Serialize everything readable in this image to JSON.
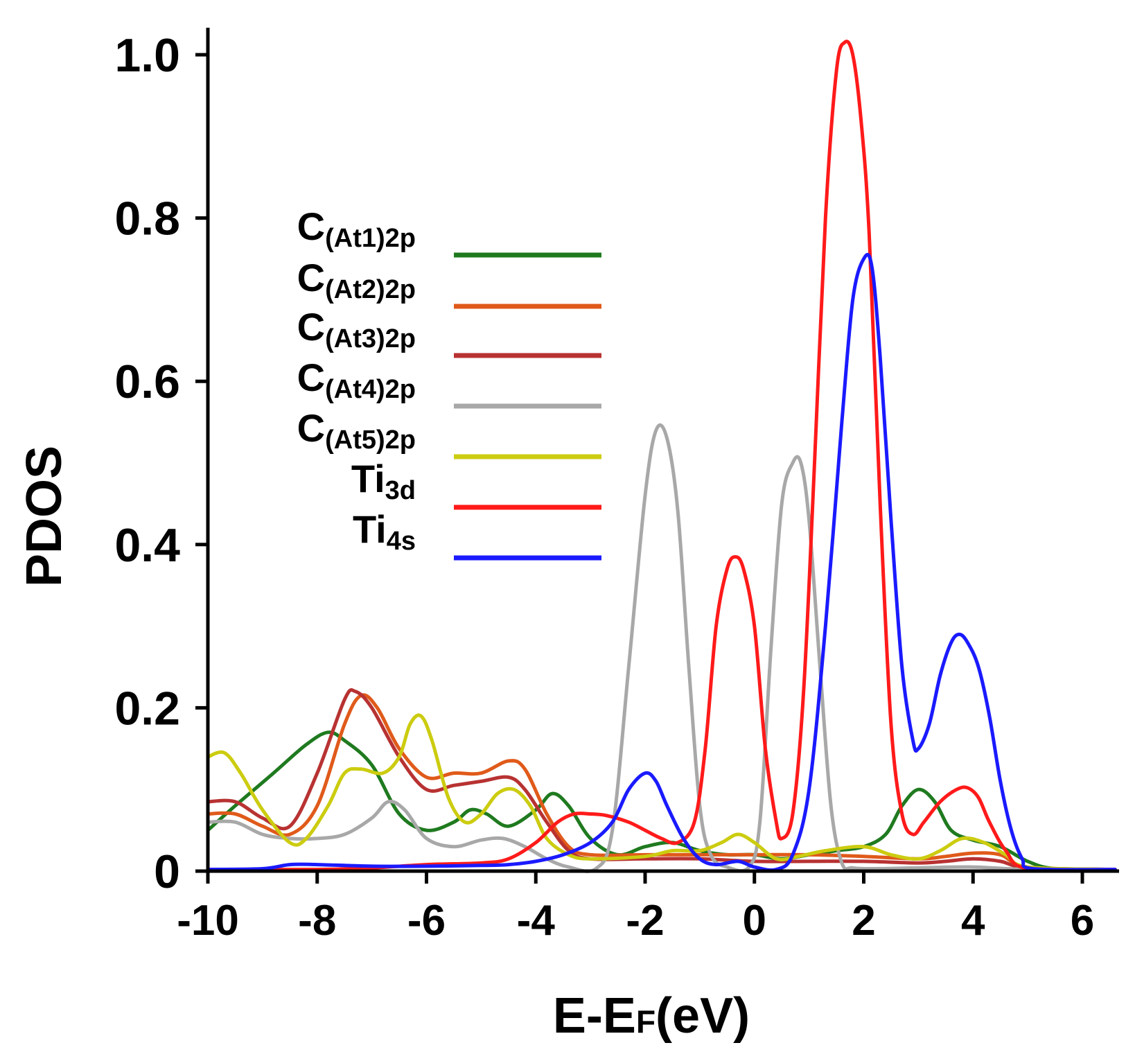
{
  "chart_data": {
    "type": "line",
    "title": "",
    "xlabel_main": "E-E",
    "xlabel_sub": "F",
    "xlabel_unit": "(eV)",
    "ylabel": "PDOS",
    "xlim": [
      -10,
      6.6
    ],
    "ylim": [
      0,
      1.0
    ],
    "xticks": [
      -10,
      -8,
      -6,
      -4,
      -2,
      0,
      2,
      4,
      6
    ],
    "xtick_labels": [
      "-10",
      "-8",
      "-6",
      "-4",
      "-2",
      "0",
      "2",
      "4",
      "6"
    ],
    "yticks": [
      0,
      0.2,
      0.4,
      0.6,
      0.8,
      1.0
    ],
    "ytick_labels": [
      "0",
      "0.2",
      "0.4",
      "0.6",
      "0.8",
      "1.0"
    ],
    "grid": false,
    "legend_position": "top-left",
    "series": [
      {
        "name": "C(At1)2p",
        "legend_main": "C",
        "legend_sub": "(At1)2p",
        "color": "#1f7a1f",
        "points": [
          [
            -10,
            0.05
          ],
          [
            -9.5,
            0.08
          ],
          [
            -8.8,
            0.12
          ],
          [
            -8.2,
            0.155
          ],
          [
            -7.8,
            0.17
          ],
          [
            -7.5,
            0.16
          ],
          [
            -7.0,
            0.13
          ],
          [
            -6.5,
            0.07
          ],
          [
            -6.0,
            0.05
          ],
          [
            -5.5,
            0.06
          ],
          [
            -5.2,
            0.075
          ],
          [
            -4.9,
            0.07
          ],
          [
            -4.5,
            0.055
          ],
          [
            -4.0,
            0.075
          ],
          [
            -3.7,
            0.095
          ],
          [
            -3.4,
            0.08
          ],
          [
            -3.0,
            0.04
          ],
          [
            -2.5,
            0.02
          ],
          [
            -2.0,
            0.03
          ],
          [
            -1.5,
            0.035
          ],
          [
            -1.0,
            0.025
          ],
          [
            -0.5,
            0.02
          ],
          [
            0,
            0.02
          ],
          [
            0.5,
            0.015
          ],
          [
            1.0,
            0.02
          ],
          [
            1.5,
            0.025
          ],
          [
            2.0,
            0.03
          ],
          [
            2.4,
            0.045
          ],
          [
            2.7,
            0.08
          ],
          [
            3.0,
            0.1
          ],
          [
            3.3,
            0.085
          ],
          [
            3.6,
            0.05
          ],
          [
            4.0,
            0.038
          ],
          [
            4.5,
            0.03
          ],
          [
            5.0,
            0.012
          ],
          [
            5.5,
            0.003
          ],
          [
            6.6,
            0.002
          ]
        ]
      },
      {
        "name": "C(At2)2p",
        "legend_main": "C",
        "legend_sub": "(At2)2p",
        "color": "#e05a1a",
        "points": [
          [
            -10,
            0.07
          ],
          [
            -9.5,
            0.07
          ],
          [
            -9.0,
            0.055
          ],
          [
            -8.5,
            0.045
          ],
          [
            -8.0,
            0.08
          ],
          [
            -7.5,
            0.18
          ],
          [
            -7.2,
            0.215
          ],
          [
            -6.9,
            0.2
          ],
          [
            -6.5,
            0.15
          ],
          [
            -6.0,
            0.115
          ],
          [
            -5.5,
            0.12
          ],
          [
            -5.0,
            0.12
          ],
          [
            -4.5,
            0.135
          ],
          [
            -4.2,
            0.125
          ],
          [
            -3.8,
            0.07
          ],
          [
            -3.4,
            0.03
          ],
          [
            -3.0,
            0.02
          ],
          [
            -2.0,
            0.02
          ],
          [
            -1.0,
            0.02
          ],
          [
            0,
            0.02
          ],
          [
            1.0,
            0.02
          ],
          [
            2.0,
            0.018
          ],
          [
            3.0,
            0.015
          ],
          [
            3.5,
            0.018
          ],
          [
            4.0,
            0.022
          ],
          [
            4.5,
            0.02
          ],
          [
            5.0,
            0.005
          ],
          [
            6.6,
            0.002
          ]
        ]
      },
      {
        "name": "C(At3)2p",
        "legend_main": "C",
        "legend_sub": "(At3)2p",
        "color": "#b83232",
        "points": [
          [
            -10,
            0.085
          ],
          [
            -9.5,
            0.085
          ],
          [
            -9.0,
            0.065
          ],
          [
            -8.5,
            0.055
          ],
          [
            -8.0,
            0.12
          ],
          [
            -7.5,
            0.21
          ],
          [
            -7.3,
            0.22
          ],
          [
            -7.0,
            0.2
          ],
          [
            -6.5,
            0.14
          ],
          [
            -6.0,
            0.1
          ],
          [
            -5.5,
            0.105
          ],
          [
            -5.0,
            0.11
          ],
          [
            -4.5,
            0.115
          ],
          [
            -4.2,
            0.1
          ],
          [
            -3.8,
            0.06
          ],
          [
            -3.4,
            0.025
          ],
          [
            -3.0,
            0.015
          ],
          [
            -2.0,
            0.015
          ],
          [
            -1.0,
            0.015
          ],
          [
            0,
            0.012
          ],
          [
            1.0,
            0.012
          ],
          [
            2.0,
            0.012
          ],
          [
            3.0,
            0.01
          ],
          [
            3.5,
            0.012
          ],
          [
            4.0,
            0.015
          ],
          [
            4.5,
            0.012
          ],
          [
            5.0,
            0.004
          ],
          [
            6.6,
            0.002
          ]
        ]
      },
      {
        "name": "C(At4)2p",
        "legend_main": "C",
        "legend_sub": "(At4)2p",
        "color": "#a8a8a8",
        "points": [
          [
            -10,
            0.06
          ],
          [
            -9.5,
            0.06
          ],
          [
            -9.0,
            0.045
          ],
          [
            -8.5,
            0.04
          ],
          [
            -8.0,
            0.04
          ],
          [
            -7.5,
            0.045
          ],
          [
            -7.0,
            0.065
          ],
          [
            -6.7,
            0.085
          ],
          [
            -6.4,
            0.075
          ],
          [
            -6.0,
            0.04
          ],
          [
            -5.5,
            0.03
          ],
          [
            -5.0,
            0.038
          ],
          [
            -4.6,
            0.04
          ],
          [
            -4.2,
            0.03
          ],
          [
            -3.8,
            0.015
          ],
          [
            -3.4,
            0.005
          ],
          [
            -2.9,
            0.003
          ],
          [
            -2.6,
            0.05
          ],
          [
            -2.3,
            0.25
          ],
          [
            -2.0,
            0.46
          ],
          [
            -1.8,
            0.54
          ],
          [
            -1.6,
            0.53
          ],
          [
            -1.4,
            0.44
          ],
          [
            -1.2,
            0.25
          ],
          [
            -1.0,
            0.08
          ],
          [
            -0.8,
            0.02
          ],
          [
            -0.5,
            0.005
          ],
          [
            -0.1,
            0.005
          ],
          [
            0.1,
            0.06
          ],
          [
            0.3,
            0.27
          ],
          [
            0.5,
            0.45
          ],
          [
            0.7,
            0.5
          ],
          [
            0.85,
            0.5
          ],
          [
            1.0,
            0.43
          ],
          [
            1.2,
            0.25
          ],
          [
            1.4,
            0.08
          ],
          [
            1.6,
            0.01
          ],
          [
            1.8,
            0.004
          ],
          [
            2.2,
            0.003
          ],
          [
            3.0,
            0.004
          ],
          [
            4.0,
            0.005
          ],
          [
            5.0,
            0.002
          ],
          [
            6.6,
            0.002
          ]
        ]
      },
      {
        "name": "C(At5)2p",
        "legend_main": "C",
        "legend_sub": "(At5)2p",
        "color": "#cccc10",
        "points": [
          [
            -10,
            0.14
          ],
          [
            -9.7,
            0.145
          ],
          [
            -9.4,
            0.12
          ],
          [
            -9.0,
            0.075
          ],
          [
            -8.5,
            0.035
          ],
          [
            -8.2,
            0.04
          ],
          [
            -7.8,
            0.08
          ],
          [
            -7.5,
            0.12
          ],
          [
            -7.2,
            0.125
          ],
          [
            -6.8,
            0.12
          ],
          [
            -6.5,
            0.14
          ],
          [
            -6.3,
            0.18
          ],
          [
            -6.1,
            0.19
          ],
          [
            -5.9,
            0.16
          ],
          [
            -5.6,
            0.09
          ],
          [
            -5.3,
            0.06
          ],
          [
            -5.0,
            0.07
          ],
          [
            -4.7,
            0.095
          ],
          [
            -4.4,
            0.1
          ],
          [
            -4.1,
            0.08
          ],
          [
            -3.8,
            0.04
          ],
          [
            -3.4,
            0.02
          ],
          [
            -3.0,
            0.015
          ],
          [
            -2.0,
            0.018
          ],
          [
            -1.5,
            0.025
          ],
          [
            -1.0,
            0.025
          ],
          [
            -0.6,
            0.035
          ],
          [
            -0.3,
            0.045
          ],
          [
            0,
            0.035
          ],
          [
            0.4,
            0.015
          ],
          [
            0.8,
            0.018
          ],
          [
            1.3,
            0.025
          ],
          [
            2.0,
            0.03
          ],
          [
            2.5,
            0.02
          ],
          [
            3.0,
            0.015
          ],
          [
            3.4,
            0.025
          ],
          [
            3.8,
            0.04
          ],
          [
            4.2,
            0.035
          ],
          [
            4.6,
            0.02
          ],
          [
            5.0,
            0.005
          ],
          [
            6.6,
            0.002
          ]
        ]
      },
      {
        "name": "Ti3d",
        "legend_main": "Ti",
        "legend_sub": "3d",
        "color": "#ff1a1a",
        "points": [
          [
            -10,
            0.002
          ],
          [
            -8,
            0.002
          ],
          [
            -7,
            0.004
          ],
          [
            -6,
            0.008
          ],
          [
            -5,
            0.01
          ],
          [
            -4.5,
            0.015
          ],
          [
            -4.0,
            0.035
          ],
          [
            -3.6,
            0.06
          ],
          [
            -3.3,
            0.07
          ],
          [
            -3.0,
            0.07
          ],
          [
            -2.7,
            0.068
          ],
          [
            -2.3,
            0.06
          ],
          [
            -2.0,
            0.05
          ],
          [
            -1.7,
            0.04
          ],
          [
            -1.4,
            0.035
          ],
          [
            -1.1,
            0.06
          ],
          [
            -0.9,
            0.15
          ],
          [
            -0.7,
            0.3
          ],
          [
            -0.5,
            0.37
          ],
          [
            -0.35,
            0.385
          ],
          [
            -0.2,
            0.37
          ],
          [
            0,
            0.3
          ],
          [
            0.2,
            0.15
          ],
          [
            0.4,
            0.06
          ],
          [
            0.5,
            0.04
          ],
          [
            0.7,
            0.07
          ],
          [
            0.9,
            0.22
          ],
          [
            1.1,
            0.5
          ],
          [
            1.3,
            0.8
          ],
          [
            1.5,
            0.98
          ],
          [
            1.65,
            1.015
          ],
          [
            1.8,
            1.0
          ],
          [
            1.95,
            0.92
          ],
          [
            2.1,
            0.78
          ],
          [
            2.3,
            0.45
          ],
          [
            2.5,
            0.18
          ],
          [
            2.7,
            0.07
          ],
          [
            2.9,
            0.045
          ],
          [
            3.1,
            0.06
          ],
          [
            3.4,
            0.085
          ],
          [
            3.7,
            0.1
          ],
          [
            3.9,
            0.102
          ],
          [
            4.1,
            0.09
          ],
          [
            4.3,
            0.06
          ],
          [
            4.6,
            0.025
          ],
          [
            5.0,
            0.003
          ],
          [
            6.6,
            0.002
          ]
        ]
      },
      {
        "name": "Ti4s",
        "legend_main": "Ti",
        "legend_sub": "4s",
        "color": "#1a1aff",
        "points": [
          [
            -10,
            0.002
          ],
          [
            -9,
            0.003
          ],
          [
            -8.5,
            0.008
          ],
          [
            -8,
            0.008
          ],
          [
            -7,
            0.006
          ],
          [
            -6,
            0.006
          ],
          [
            -5,
            0.007
          ],
          [
            -4.5,
            0.008
          ],
          [
            -4.0,
            0.012
          ],
          [
            -3.5,
            0.02
          ],
          [
            -3.0,
            0.035
          ],
          [
            -2.6,
            0.06
          ],
          [
            -2.3,
            0.1
          ],
          [
            -2.0,
            0.12
          ],
          [
            -1.8,
            0.11
          ],
          [
            -1.6,
            0.08
          ],
          [
            -1.3,
            0.04
          ],
          [
            -1.0,
            0.015
          ],
          [
            -0.7,
            0.008
          ],
          [
            -0.3,
            0.012
          ],
          [
            0,
            0.005
          ],
          [
            0.4,
            0.002
          ],
          [
            0.7,
            0.02
          ],
          [
            1.0,
            0.1
          ],
          [
            1.3,
            0.3
          ],
          [
            1.6,
            0.55
          ],
          [
            1.8,
            0.7
          ],
          [
            2.0,
            0.75
          ],
          [
            2.15,
            0.74
          ],
          [
            2.3,
            0.63
          ],
          [
            2.5,
            0.43
          ],
          [
            2.7,
            0.25
          ],
          [
            2.9,
            0.16
          ],
          [
            3.0,
            0.15
          ],
          [
            3.2,
            0.18
          ],
          [
            3.4,
            0.24
          ],
          [
            3.6,
            0.28
          ],
          [
            3.75,
            0.29
          ],
          [
            3.9,
            0.28
          ],
          [
            4.1,
            0.25
          ],
          [
            4.3,
            0.19
          ],
          [
            4.5,
            0.11
          ],
          [
            4.7,
            0.05
          ],
          [
            4.9,
            0.015
          ],
          [
            5.1,
            0.003
          ],
          [
            6.6,
            0.002
          ]
        ]
      }
    ]
  }
}
